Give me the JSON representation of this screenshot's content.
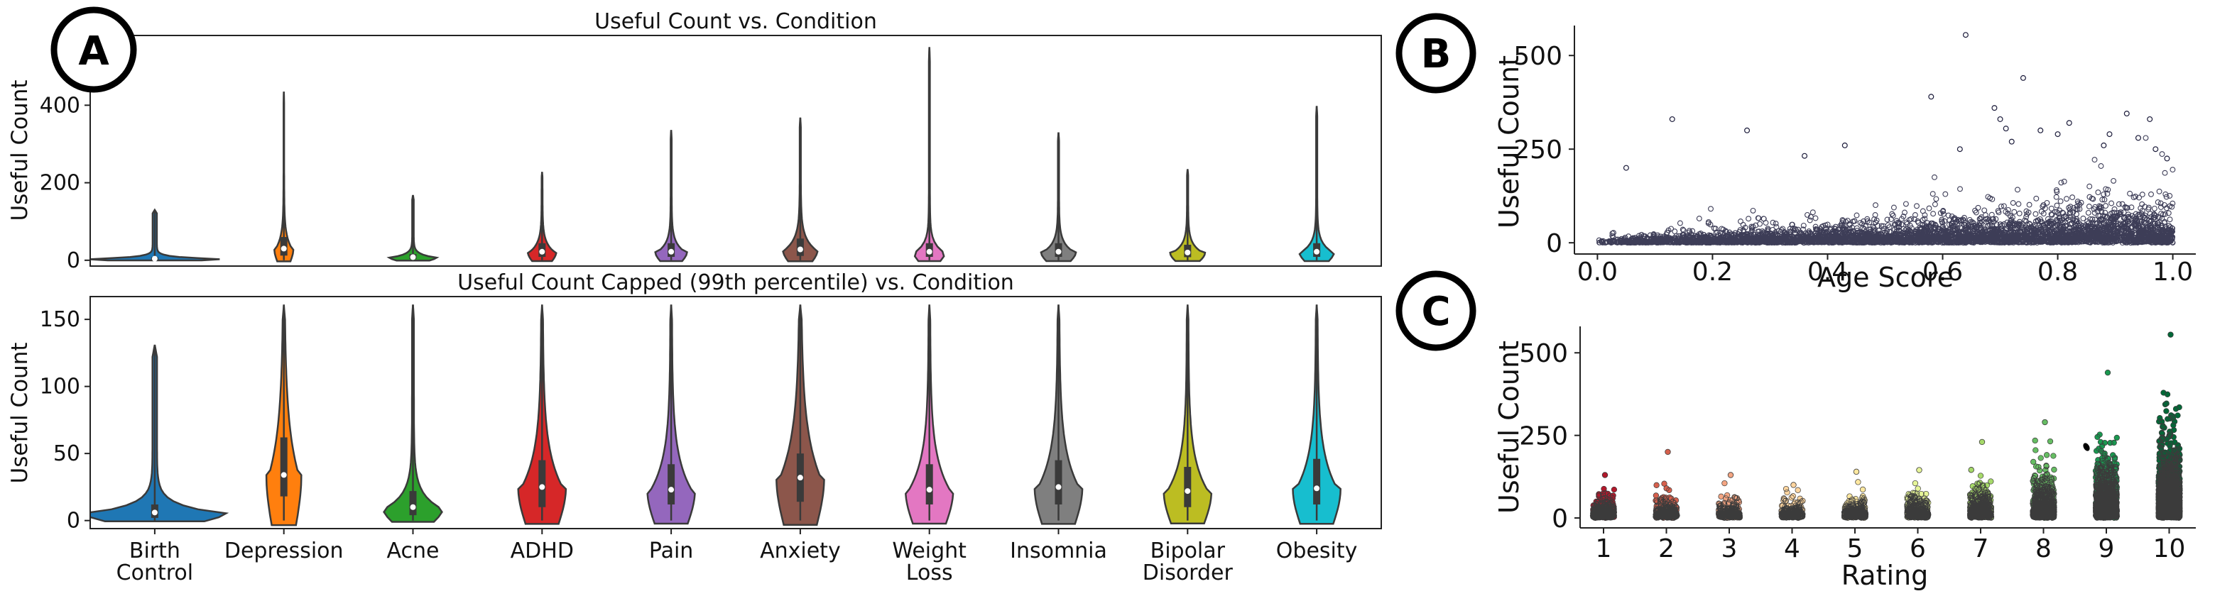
{
  "panels": {
    "A": "A",
    "B": "B",
    "C": "C"
  },
  "chart_data": [
    {
      "id": "A-top",
      "type": "violin",
      "title": "Useful Count vs. Condition",
      "xlabel": "",
      "ylabel": "Useful Count",
      "ylim": [
        -15,
        580
      ],
      "yticks": [
        0,
        200,
        400
      ],
      "categories": [
        "Birth Control",
        "Depression",
        "Acne",
        "ADHD",
        "Pain",
        "Anxiety",
        "Weight Loss",
        "Insomnia",
        "Bipolar Disorder",
        "Obesity"
      ],
      "colors": [
        "#1f77b4",
        "#ff7f0e",
        "#2ca02c",
        "#d62728",
        "#9467bd",
        "#8c564b",
        "#e377c2",
        "#7f7f7f",
        "#bcbd22",
        "#17becf"
      ],
      "max": [
        130,
        435,
        168,
        228,
        336,
        368,
        550,
        330,
        235,
        398
      ],
      "median": [
        4,
        30,
        8,
        22,
        22,
        28,
        22,
        22,
        20,
        22
      ]
    },
    {
      "id": "A-bottom",
      "type": "violin",
      "title": "Useful Count Capped (99th percentile) vs. Condition",
      "xlabel": "",
      "ylabel": "Useful Count",
      "ylim": [
        -6,
        167
      ],
      "yticks": [
        0,
        50,
        100,
        150
      ],
      "categories": [
        "Birth Control",
        "Depression",
        "Acne",
        "ADHD",
        "Pain",
        "Anxiety",
        "Weight Loss",
        "Insomnia",
        "Bipolar Disorder",
        "Obesity"
      ],
      "tick_labels": [
        [
          "Birth",
          "Control"
        ],
        [
          "Depression"
        ],
        [
          "Acne"
        ],
        [
          "ADHD"
        ],
        [
          "Pain"
        ],
        [
          "Anxiety"
        ],
        [
          "Weight",
          "Loss"
        ],
        [
          "Insomnia"
        ],
        [
          "Bipolar",
          "Disorder"
        ],
        [
          "Obesity"
        ]
      ],
      "colors": [
        "#1f77b4",
        "#ff7f0e",
        "#2ca02c",
        "#d62728",
        "#9467bd",
        "#8c564b",
        "#e377c2",
        "#7f7f7f",
        "#bcbd22",
        "#17becf"
      ],
      "max": [
        131,
        161,
        161,
        161,
        161,
        161,
        161,
        161,
        161,
        161
      ],
      "median": [
        6,
        34,
        10,
        25,
        23,
        32,
        23,
        25,
        22,
        24
      ],
      "q1": [
        2,
        18,
        4,
        10,
        12,
        14,
        12,
        12,
        10,
        12
      ],
      "q3": [
        12,
        62,
        22,
        45,
        42,
        50,
        42,
        45,
        40,
        46
      ]
    },
    {
      "id": "B",
      "type": "scatter",
      "title": "",
      "xlabel": "Age Score",
      "ylabel": "Useful Count",
      "xlim": [
        -0.04,
        1.04
      ],
      "ylim": [
        -30,
        580
      ],
      "xticks": [
        0.0,
        0.2,
        0.4,
        0.6,
        0.8,
        1.0
      ],
      "xtick_labels": [
        "0.0",
        "0.2",
        "0.4",
        "0.6",
        "0.8",
        "1.0"
      ],
      "yticks": [
        0,
        250,
        500
      ],
      "outliers": [
        [
          0.05,
          200
        ],
        [
          0.13,
          330
        ],
        [
          0.26,
          300
        ],
        [
          0.36,
          232
        ],
        [
          0.43,
          260
        ],
        [
          0.58,
          390
        ],
        [
          0.63,
          250
        ],
        [
          0.64,
          555
        ],
        [
          0.69,
          360
        ],
        [
          0.7,
          330
        ],
        [
          0.71,
          305
        ],
        [
          0.72,
          270
        ],
        [
          0.74,
          440
        ],
        [
          0.77,
          300
        ],
        [
          0.8,
          290
        ],
        [
          0.82,
          320
        ],
        [
          0.88,
          260
        ],
        [
          0.89,
          290
        ],
        [
          0.92,
          345
        ],
        [
          0.94,
          280
        ],
        [
          0.96,
          330
        ],
        [
          0.97,
          250
        ],
        [
          0.99,
          225
        ]
      ]
    },
    {
      "id": "C",
      "type": "strip",
      "title": "",
      "xlabel": "Rating",
      "ylabel": "Useful Count",
      "ylim": [
        -30,
        580
      ],
      "yticks": [
        0,
        250,
        500
      ],
      "categories": [
        "1",
        "2",
        "3",
        "4",
        "5",
        "6",
        "7",
        "8",
        "9",
        "10"
      ],
      "colors": [
        "#b2182b",
        "#d6604d",
        "#f4a582",
        "#fdd49e",
        "#fee8a0",
        "#e6f598",
        "#a6d96a",
        "#66bd63",
        "#1a9850",
        "#006837"
      ],
      "max": [
        130,
        200,
        130,
        100,
        140,
        145,
        230,
        290,
        440,
        555
      ]
    }
  ]
}
